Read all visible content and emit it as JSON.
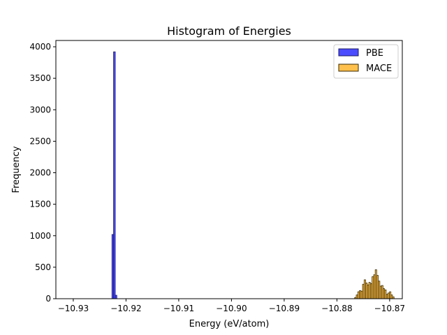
{
  "chart_data": {
    "type": "bar",
    "title": "Histogram of Energies",
    "xlabel": "Energy (eV/atom)",
    "ylabel": "Frequency",
    "xlim": [
      -10.9333,
      -10.8676
    ],
    "ylim": [
      0,
      4100
    ],
    "xticks": [
      -10.93,
      -10.92,
      -10.91,
      -10.9,
      -10.89,
      -10.88,
      -10.87
    ],
    "xtick_labels": [
      "−10.93",
      "−10.92",
      "−10.91",
      "−10.90",
      "−10.89",
      "−10.88",
      "−10.87"
    ],
    "yticks": [
      0,
      500,
      1000,
      1500,
      2000,
      2500,
      3000,
      3500,
      4000
    ],
    "ytick_labels": [
      "0",
      "500",
      "1000",
      "1500",
      "2000",
      "2500",
      "3000",
      "3500",
      "4000"
    ],
    "grid": false,
    "legend_position": "top-right",
    "series": [
      {
        "name": "PBE",
        "color": "#0000ff",
        "edge_color": "#1a1a66",
        "bin_width": 0.00033,
        "bins": [
          {
            "x": -10.9225,
            "y": 1020
          },
          {
            "x": -10.9222,
            "y": 3920
          },
          {
            "x": -10.9219,
            "y": 55
          }
        ]
      },
      {
        "name": "MACE",
        "color": "#ffa500",
        "edge_color": "#3a2a00",
        "bin_width": 0.00028,
        "bins": [
          {
            "x": -10.8765,
            "y": 20
          },
          {
            "x": -10.8762,
            "y": 60
          },
          {
            "x": -10.8759,
            "y": 110
          },
          {
            "x": -10.8756,
            "y": 130
          },
          {
            "x": -10.8753,
            "y": 120
          },
          {
            "x": -10.875,
            "y": 230
          },
          {
            "x": -10.8747,
            "y": 300
          },
          {
            "x": -10.8744,
            "y": 250
          },
          {
            "x": -10.8741,
            "y": 220
          },
          {
            "x": -10.8738,
            "y": 260
          },
          {
            "x": -10.8735,
            "y": 240
          },
          {
            "x": -10.8732,
            "y": 350
          },
          {
            "x": -10.8729,
            "y": 380
          },
          {
            "x": -10.8726,
            "y": 460
          },
          {
            "x": -10.8723,
            "y": 370
          },
          {
            "x": -10.872,
            "y": 280
          },
          {
            "x": -10.8717,
            "y": 200
          },
          {
            "x": -10.8714,
            "y": 210
          },
          {
            "x": -10.8711,
            "y": 160
          },
          {
            "x": -10.8708,
            "y": 140
          },
          {
            "x": -10.8705,
            "y": 70
          },
          {
            "x": -10.8702,
            "y": 90
          },
          {
            "x": -10.8699,
            "y": 110
          },
          {
            "x": -10.8696,
            "y": 60
          },
          {
            "x": -10.8693,
            "y": 30
          }
        ]
      }
    ]
  }
}
